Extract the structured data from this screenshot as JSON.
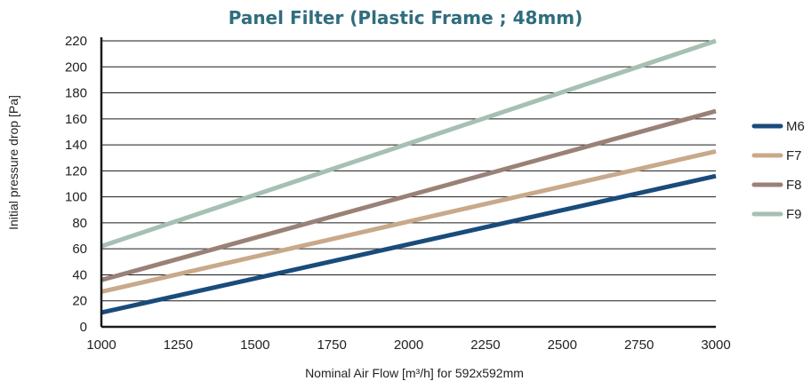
{
  "chart_data": {
    "type": "line",
    "title": "Panel Filter (Plastic Frame ; 48mm)",
    "xlabel": "Nominal Air Flow [m³/h] for 592x592mm",
    "ylabel": "Initial pressure drop [Pa]",
    "xlim": [
      1000,
      3000
    ],
    "ylim": [
      0,
      220
    ],
    "x_ticks": [
      "1000",
      "1250",
      "1500",
      "1750",
      "2000",
      "2250",
      "2500",
      "2750",
      "3000"
    ],
    "y_ticks": [
      "0",
      "20",
      "40",
      "60",
      "80",
      "100",
      "120",
      "140",
      "160",
      "180",
      "200",
      "220"
    ],
    "grid": "horizontal",
    "legend_position": "right",
    "x": [
      1000,
      3000
    ],
    "series": [
      {
        "name": "M6",
        "color": "#1a4b7c",
        "values": [
          11,
          116
        ]
      },
      {
        "name": "F7",
        "color": "#c8a98a",
        "values": [
          27,
          135
        ]
      },
      {
        "name": "F8",
        "color": "#9a8178",
        "values": [
          36,
          166
        ]
      },
      {
        "name": "F9",
        "color": "#a6c0b2",
        "values": [
          62,
          220
        ]
      }
    ]
  }
}
